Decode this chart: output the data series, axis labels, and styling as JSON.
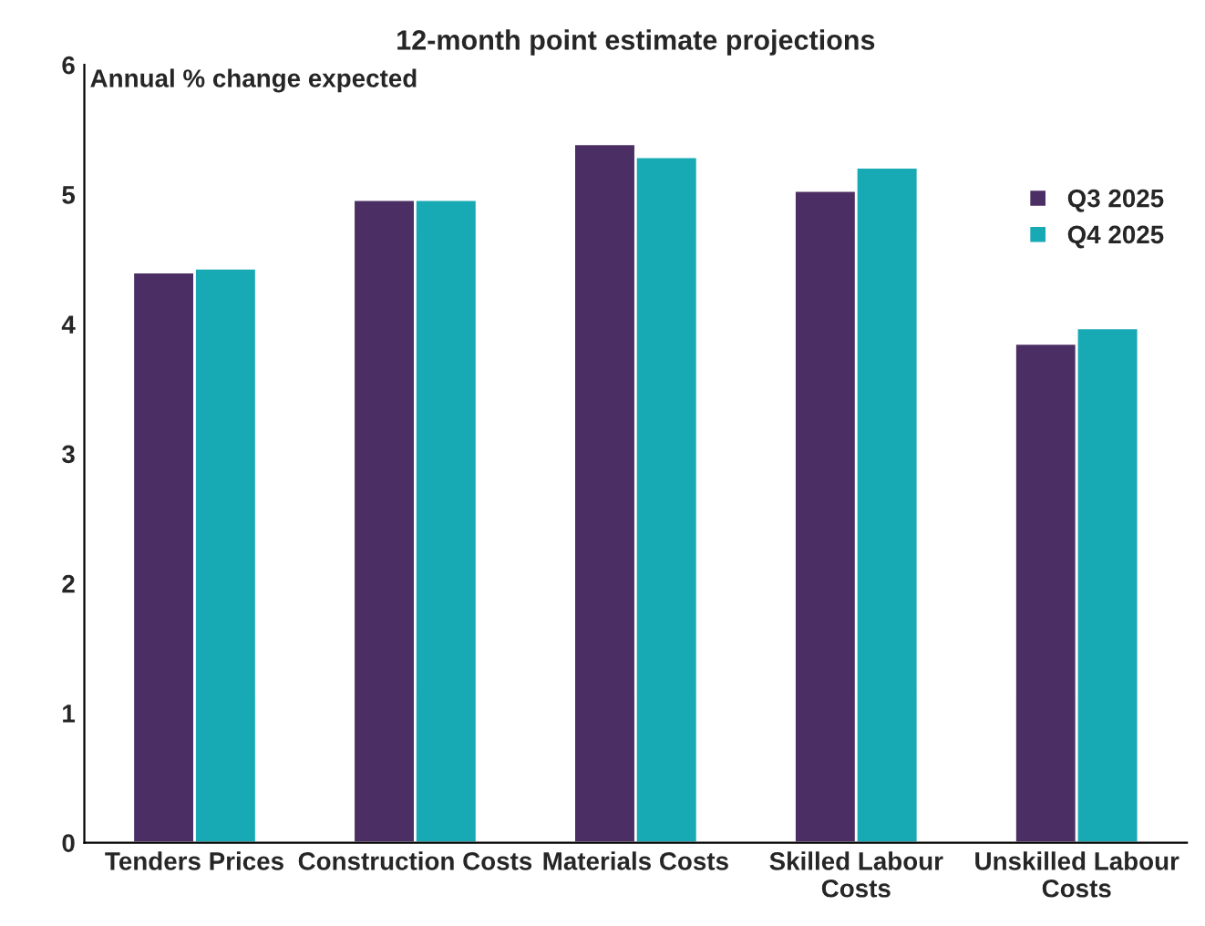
{
  "chart_data": {
    "type": "bar",
    "title": "12-month point estimate projections",
    "ylabel": "Annual % change expected",
    "categories": [
      "Tenders Prices",
      "Construction Costs",
      "Materials Costs",
      "Skilled Labour\nCosts",
      "Unskilled Labour\nCosts"
    ],
    "series": [
      {
        "name": "Q3 2025",
        "color": "#4b2e63",
        "values": [
          4.4,
          4.96,
          5.39,
          5.03,
          3.85
        ]
      },
      {
        "name": "Q4 2025",
        "color": "#17a9b4",
        "values": [
          4.43,
          4.96,
          5.29,
          5.21,
          3.97
        ]
      }
    ],
    "ylim": [
      0,
      6
    ],
    "yticks": [
      0,
      1,
      2,
      3,
      4,
      5,
      6
    ],
    "grid": false,
    "legend": "top right"
  }
}
